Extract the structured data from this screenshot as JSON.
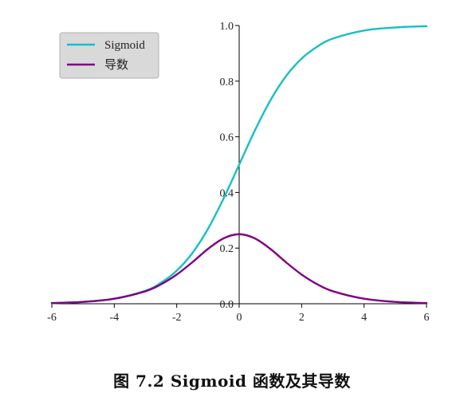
{
  "caption": "图 7.2 Sigmoid 函数及其导数",
  "chart_data": {
    "type": "line",
    "xlim": [
      -6,
      6
    ],
    "ylim": [
      0,
      1.0
    ],
    "x_ticks": [
      "-6",
      "-4",
      "-2",
      "0",
      "2",
      "4",
      "6"
    ],
    "x_tick_values": [
      -6,
      -4,
      -2,
      0,
      2,
      4,
      6
    ],
    "y_ticks": [
      "0.0",
      "0.2",
      "0.4",
      "0.6",
      "0.8",
      "1.0"
    ],
    "y_tick_values": [
      0,
      0.2,
      0.4,
      0.6,
      0.8,
      1.0
    ],
    "grid": false,
    "legend_position": "top-left",
    "x": [
      -6,
      -5,
      -4,
      -3,
      -2.5,
      -2,
      -1.5,
      -1,
      -0.5,
      0,
      0.5,
      1,
      1.5,
      2,
      2.5,
      3,
      4,
      5,
      6
    ],
    "series": [
      {
        "name": "Sigmoid",
        "color": "#17bfc4",
        "values": [
          0.0025,
          0.0067,
          0.018,
          0.047,
          0.076,
          0.119,
          0.182,
          0.269,
          0.378,
          0.5,
          0.622,
          0.731,
          0.818,
          0.881,
          0.924,
          0.953,
          0.982,
          0.993,
          0.9975
        ]
      },
      {
        "name": "导数",
        "color": "#800080",
        "values": [
          0.0025,
          0.0066,
          0.018,
          0.045,
          0.07,
          0.105,
          0.149,
          0.197,
          0.235,
          0.25,
          0.235,
          0.197,
          0.149,
          0.105,
          0.07,
          0.045,
          0.018,
          0.0066,
          0.0025
        ]
      }
    ]
  }
}
